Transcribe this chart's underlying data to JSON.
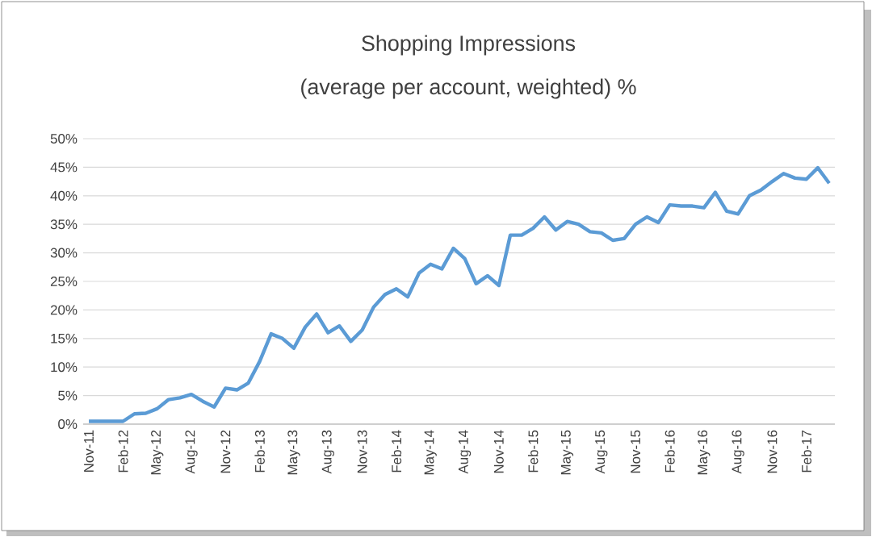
{
  "chart_data": {
    "type": "line",
    "title": "Shopping Impressions",
    "subtitle": "(average per account, weighted) %",
    "categories": [
      "Nov-11",
      null,
      null,
      "Feb-12",
      null,
      null,
      "May-12",
      null,
      null,
      "Aug-12",
      null,
      null,
      "Nov-12",
      null,
      null,
      "Feb-13",
      null,
      null,
      "May-13",
      null,
      null,
      "Aug-13",
      null,
      null,
      "Nov-13",
      null,
      null,
      "Feb-14",
      null,
      null,
      "May-14",
      null,
      null,
      "Aug-14",
      null,
      null,
      "Nov-14",
      null,
      null,
      "Feb-15",
      null,
      null,
      "May-15",
      null,
      null,
      "Aug-15",
      null,
      null,
      "Nov-15",
      null,
      null,
      "Feb-16",
      null,
      null,
      "May-16",
      null,
      null,
      "Aug-16",
      null,
      null,
      "Nov-16",
      null,
      null,
      "Feb-17",
      null,
      null
    ],
    "values": [
      0.5,
      0.5,
      0.5,
      0.5,
      1.8,
      1.9,
      2.7,
      4.3,
      4.6,
      5.2,
      4.0,
      3.0,
      6.3,
      6.0,
      7.2,
      11,
      15.8,
      15,
      13.3,
      17,
      19.3,
      16,
      17.2,
      14.5,
      16.5,
      20.5,
      22.7,
      23.7,
      22.3,
      26.5,
      28,
      27.2,
      30.8,
      29,
      24.6,
      26,
      24.3,
      33.1,
      33.1,
      34.3,
      36.3,
      34,
      35.5,
      35,
      33.7,
      33.5,
      32.2,
      32.5,
      35,
      36.3,
      35.3,
      38.4,
      38.2,
      38.2,
      37.9,
      40.6,
      37.3,
      36.8,
      40,
      41,
      42.5,
      43.9,
      43.1,
      42.9,
      44.9,
      42.2
    ],
    "color": "#5b9bd5",
    "marker": "none",
    "line_style": "solid",
    "grid": "y",
    "ylim": [
      0,
      50
    ],
    "yticks": [
      {
        "value": 0,
        "label": "0%"
      },
      {
        "value": 5,
        "label": "5%"
      },
      {
        "value": 10,
        "label": "10%"
      },
      {
        "value": 15,
        "label": "15%"
      },
      {
        "value": 20,
        "label": "20%"
      },
      {
        "value": 25,
        "label": "25%"
      },
      {
        "value": 30,
        "label": "30%"
      },
      {
        "value": 35,
        "label": "35%"
      },
      {
        "value": 40,
        "label": "40%"
      },
      {
        "value": 45,
        "label": "45%"
      },
      {
        "value": 50,
        "label": "50%"
      }
    ]
  }
}
